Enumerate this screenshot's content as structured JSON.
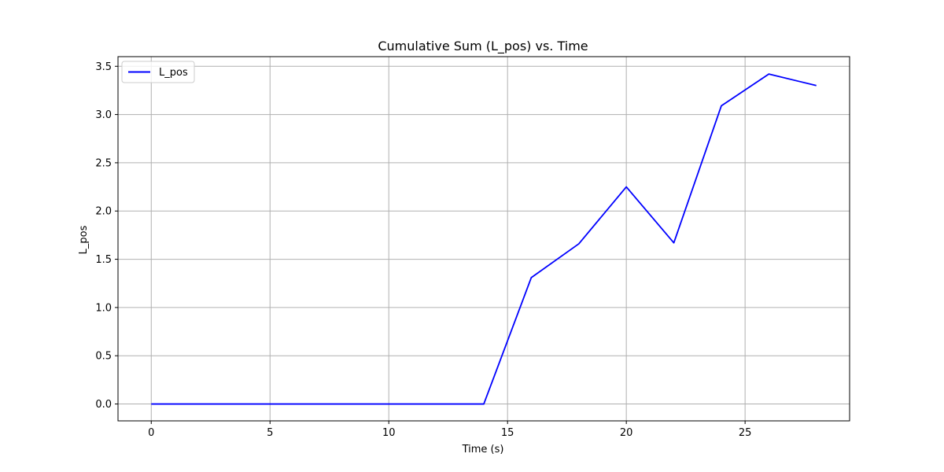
{
  "chart_data": {
    "type": "line",
    "title": "Cumulative Sum (L_pos) vs. Time",
    "xlabel": "Time (s)",
    "ylabel": "L_pos",
    "xlim": [
      -1.4,
      29.4
    ],
    "ylim": [
      -0.175,
      3.6
    ],
    "x_ticks": [
      0,
      5,
      10,
      15,
      20,
      25
    ],
    "y_ticks": [
      0.0,
      0.5,
      1.0,
      1.5,
      2.0,
      2.5,
      3.0,
      3.5
    ],
    "x_tick_labels": [
      "0",
      "5",
      "10",
      "15",
      "20",
      "25"
    ],
    "y_tick_labels": [
      "0.0",
      "0.5",
      "1.0",
      "1.5",
      "2.0",
      "2.5",
      "3.0",
      "3.5"
    ],
    "grid": true,
    "legend_position": "top-left",
    "series": [
      {
        "name": "L_pos",
        "color": "#0000ff",
        "x": [
          0,
          2,
          4,
          6,
          8,
          10,
          12,
          14,
          16,
          18,
          20,
          22,
          24,
          26,
          28
        ],
        "y": [
          0.0,
          0.0,
          0.0,
          0.0,
          0.0,
          0.0,
          0.0,
          0.0,
          1.31,
          1.66,
          2.25,
          1.67,
          3.09,
          3.42,
          3.3
        ]
      }
    ]
  }
}
